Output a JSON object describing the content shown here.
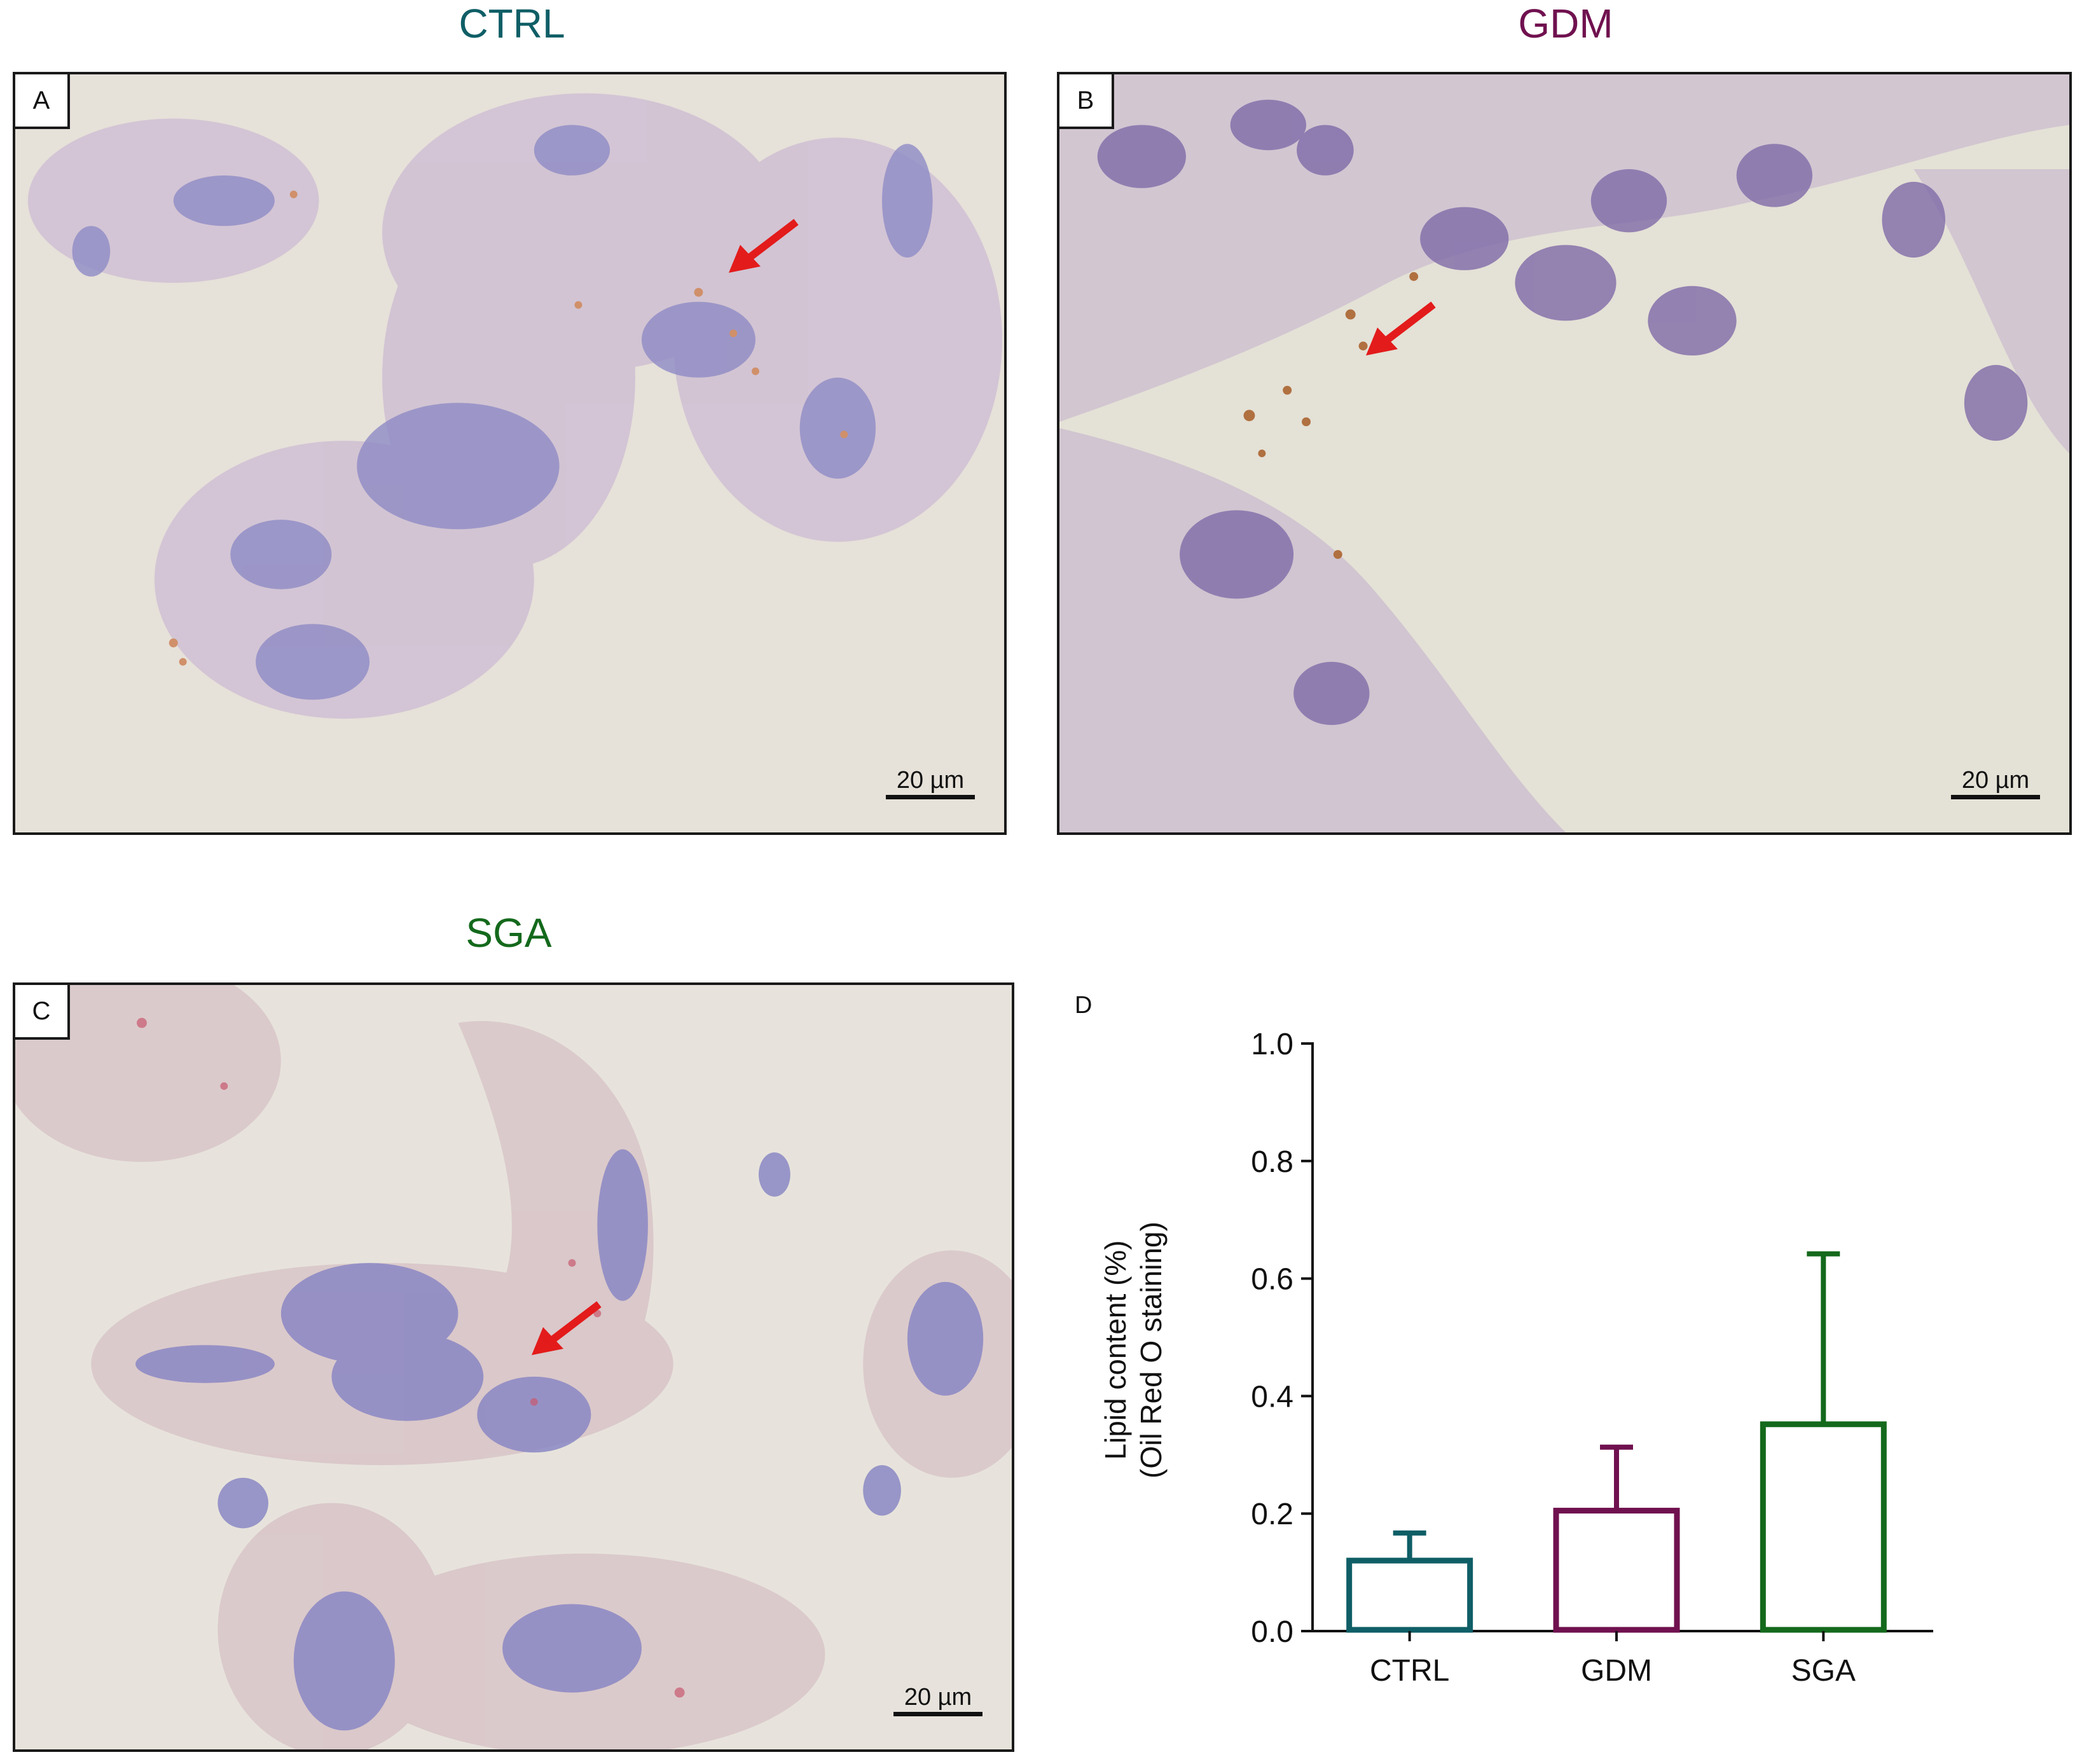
{
  "panels": {
    "a": {
      "title": "CTRL",
      "title_color": "#0f5e66",
      "letter": "A",
      "scale_label": "20 µm"
    },
    "b": {
      "title": "GDM",
      "title_color": "#70114f",
      "letter": "B",
      "scale_label": "20 µm"
    },
    "c": {
      "title": "SGA",
      "title_color": "#14691c",
      "letter": "C",
      "scale_label": "20 µm"
    },
    "d": {
      "letter": "D"
    }
  },
  "chart_data": {
    "type": "bar",
    "categories": [
      "CTRL",
      "GDM",
      "SGA"
    ],
    "values": [
      0.12,
      0.205,
      0.352
    ],
    "errors": [
      0.047,
      0.108,
      0.29
    ],
    "colors": [
      "#0f5e66",
      "#70114f",
      "#14691c"
    ],
    "ylabel_lines": [
      "Lipid content (%)",
      "(Oil Red O staining)"
    ],
    "xlabel": "",
    "ylim": [
      0,
      1.0
    ],
    "yticks": [
      "0.0",
      "0.2",
      "0.4",
      "0.6",
      "0.8",
      "1.0"
    ],
    "ytick_values": [
      0,
      0.2,
      0.4,
      0.6,
      0.8,
      1.0
    ],
    "error_bars": "upper",
    "grid": false,
    "legend": "none"
  },
  "icons": {
    "arrow": "red-arrow-icon",
    "arrow_color": "#e31b1b"
  }
}
